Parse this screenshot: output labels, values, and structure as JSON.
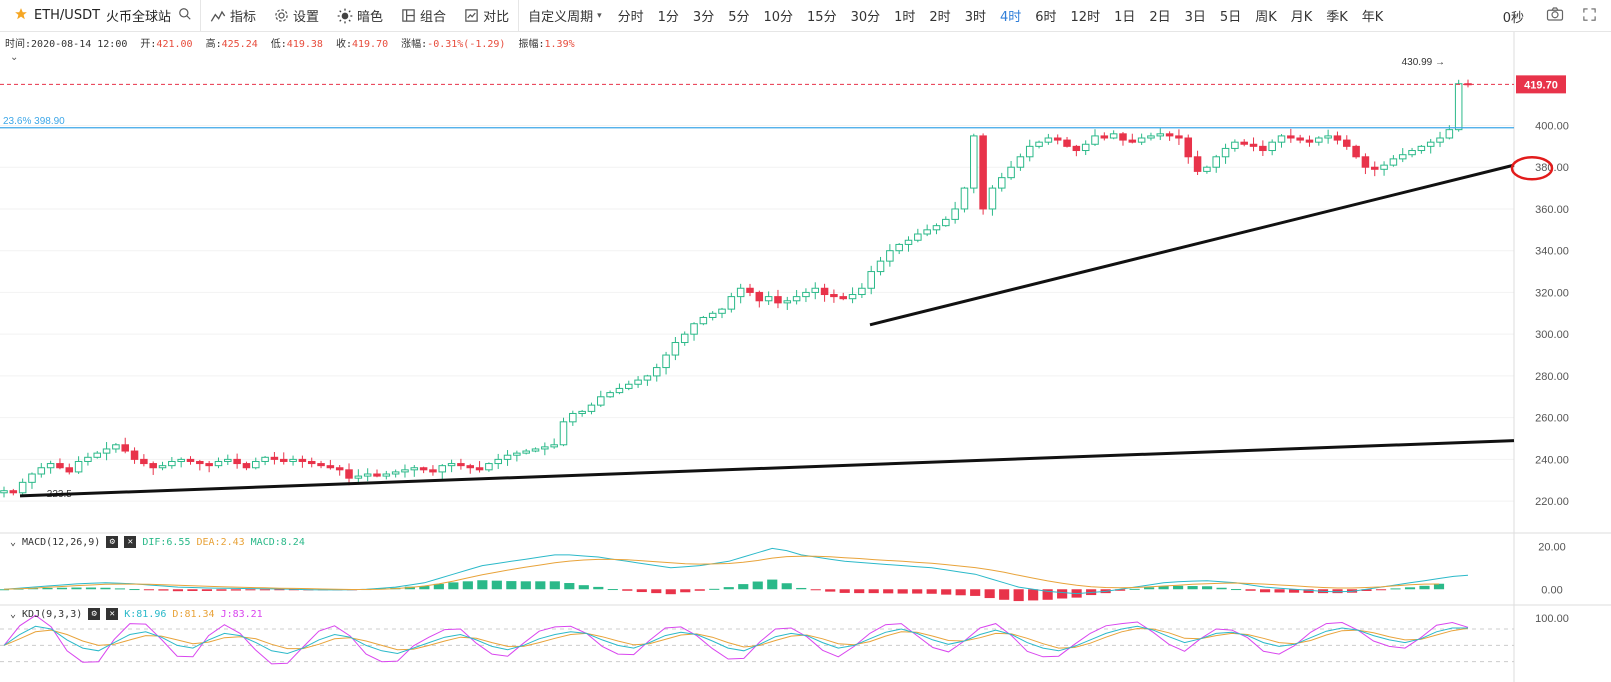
{
  "toolbar": {
    "symbol": "ETH/USDT",
    "exchange": "火币全球站",
    "indicators_label": "指标",
    "settings_label": "设置",
    "theme_label": "暗色",
    "combine_label": "组合",
    "compare_label": "对比",
    "custom_period_label": "自定义周期",
    "periods": [
      "分时",
      "1分",
      "3分",
      "5分",
      "10分",
      "15分",
      "30分",
      "1时",
      "2时",
      "3时",
      "4时",
      "6时",
      "12时",
      "1日",
      "2日",
      "3日",
      "5日",
      "周K",
      "月K",
      "季K",
      "年K"
    ],
    "active_period": "4时",
    "countdown": "0秒"
  },
  "info": {
    "time_label": "时间:",
    "time": "2020-08-14 12:00",
    "open_label": "开:",
    "open": "421.00",
    "high_label": "高:",
    "high": "425.24",
    "low_label": "低:",
    "low": "419.38",
    "close_label": "收:",
    "close": "419.70",
    "change_label": "涨幅:",
    "change": "-0.31%(-1.29)",
    "amp_label": "振幅:",
    "amp": "1.39%"
  },
  "macd": {
    "label": "MACD(12,26,9)",
    "dif": "DIF:6.55",
    "dea": "DEA:2.43",
    "macd": "MACD:8.24"
  },
  "kdj": {
    "label": "KDJ(9,3,3)",
    "k": "K:81.96",
    "d": "D:81.34",
    "j": "J:83.21"
  },
  "colors": {
    "up": "#2bb989",
    "down": "#e8334a",
    "accent": "#2f7ed8",
    "fib": "#3ea7e8",
    "price_tag": "#e8334a"
  },
  "chart_data": {
    "type": "candlestick",
    "ylim": [
      210,
      440
    ],
    "y_ticks": [
      "220.00",
      "240.00",
      "260.00",
      "280.00",
      "300.00",
      "320.00",
      "340.00",
      "360.00",
      "380.00",
      "400.00"
    ],
    "last_price": "419.70",
    "last_price_value": 419.7,
    "high_marker": "430.99",
    "high_marker_value": 430.99,
    "low_marker": "223.5",
    "low_marker_value": 223.5,
    "fib_label": "23.6% 398.90",
    "fib_value": 398.9,
    "close_series": [
      225,
      224,
      229,
      233,
      236,
      238,
      236,
      234,
      239,
      241,
      243,
      245,
      247,
      244,
      240,
      238,
      236,
      237,
      239,
      240,
      239,
      238,
      237,
      239,
      240,
      238,
      236,
      239,
      241,
      240,
      239,
      240,
      239,
      238,
      237,
      236,
      235,
      231,
      232,
      233,
      232,
      233,
      234,
      235,
      236,
      235,
      234,
      237,
      238,
      237,
      236,
      235,
      238,
      240,
      242,
      243,
      244,
      245,
      246,
      247,
      258,
      262,
      263,
      266,
      270,
      272,
      274,
      276,
      278,
      280,
      284,
      290,
      296,
      300,
      305,
      308,
      310,
      312,
      318,
      322,
      320,
      316,
      318,
      315,
      316,
      318,
      320,
      322,
      319,
      318,
      317,
      319,
      322,
      330,
      335,
      340,
      343,
      345,
      348,
      350,
      352,
      355,
      360,
      370,
      395,
      360,
      370,
      375,
      380,
      385,
      390,
      392,
      394,
      393,
      390,
      388,
      391,
      395,
      394,
      396,
      393,
      392,
      394,
      395,
      396,
      395,
      394,
      385,
      378,
      380,
      385,
      389,
      392,
      391,
      390,
      388,
      392,
      395,
      394,
      393,
      392,
      394,
      395,
      393,
      390,
      385,
      380,
      379,
      381,
      384,
      386,
      388,
      390,
      392,
      394,
      398,
      420,
      419.7
    ],
    "macd": {
      "dif": [
        0,
        0.5,
        1,
        1.5,
        2,
        2.5,
        2.8,
        3,
        2.8,
        2.5,
        2,
        1.5,
        1,
        0.8,
        0.6,
        0.5,
        0.4,
        0.3,
        0.2,
        0.1,
        0,
        -0.2,
        -0.3,
        -0.3,
        -0.2,
        0,
        0.5,
        1,
        2,
        3,
        5,
        7,
        9,
        11,
        12,
        13,
        14,
        15,
        16,
        16,
        15.5,
        15,
        14,
        13,
        12,
        11,
        10,
        10.5,
        11,
        12,
        13,
        15,
        17,
        19,
        18,
        16,
        15,
        14,
        13,
        12.5,
        12,
        11.5,
        11,
        10.5,
        10,
        9,
        8,
        7,
        5,
        3,
        1,
        0,
        -1,
        -1.5,
        -2,
        -1.5,
        -1,
        0,
        1,
        2,
        3,
        3.5,
        3.8,
        4,
        3.5,
        3,
        2,
        1,
        0.5,
        0,
        -0.5,
        -1,
        -1.2,
        -1,
        0,
        1,
        2,
        3,
        4,
        5,
        6,
        6.55
      ],
      "dea": [
        0,
        0.2,
        0.5,
        0.9,
        1.3,
        1.7,
        2,
        2.3,
        2.4,
        2.4,
        2.3,
        2.1,
        1.9,
        1.6,
        1.4,
        1.2,
        1,
        0.8,
        0.7,
        0.5,
        0.4,
        0.3,
        0.1,
        0,
        -0.1,
        -0.1,
        0,
        0.3,
        0.8,
        1.5,
        2.5,
        3.8,
        5.3,
        6.8,
        8,
        9.2,
        10.3,
        11.3,
        12.3,
        13.1,
        13.6,
        13.9,
        13.9,
        13.7,
        13.3,
        12.8,
        12.3,
        11.9,
        11.7,
        11.8,
        12,
        12.6,
        13.4,
        14.5,
        15.2,
        15.4,
        15.4,
        15.1,
        14.7,
        14.3,
        13.8,
        13.4,
        13,
        12.5,
        12.1,
        11.5,
        10.8,
        10.1,
        9.1,
        7.9,
        6.5,
        5.2,
        3.9,
        2.8,
        1.9,
        1.2,
        0.8,
        0.7,
        0.8,
        1.1,
        1.5,
        1.9,
        2.3,
        2.6,
        2.8,
        2.9,
        2.7,
        2.4,
        2,
        1.6,
        1.2,
        0.8,
        0.6,
        0.6,
        0.8,
        1.1,
        1.6,
        2.1,
        2.4,
        2.43
      ]
    },
    "kdj": {
      "k": [
        50,
        70,
        85,
        80,
        60,
        45,
        40,
        55,
        70,
        75,
        65,
        50,
        45,
        60,
        72,
        68,
        55,
        40,
        35,
        45,
        60,
        70,
        65,
        50,
        40,
        35,
        45,
        55,
        65,
        70,
        60,
        48,
        42,
        50,
        62,
        70,
        75,
        72,
        60,
        50,
        45,
        55,
        68,
        74,
        70,
        58,
        45,
        40,
        52,
        66,
        72,
        68,
        55,
        45,
        50,
        62,
        74,
        80,
        72,
        60,
        52,
        58,
        70,
        78,
        70,
        55,
        45,
        40,
        48,
        60,
        72,
        80,
        85,
        78,
        66,
        55,
        62,
        72,
        74,
        68,
        55,
        48,
        52,
        64,
        76,
        82,
        78,
        68,
        60,
        55,
        62,
        75,
        82,
        81.96
      ],
      "d": [
        50,
        62,
        75,
        78,
        70,
        58,
        50,
        52,
        60,
        68,
        67,
        60,
        53,
        56,
        64,
        66,
        62,
        52,
        44,
        44,
        52,
        62,
        64,
        58,
        50,
        42,
        43,
        50,
        58,
        65,
        63,
        55,
        48,
        48,
        55,
        63,
        70,
        72,
        66,
        58,
        51,
        53,
        61,
        69,
        71,
        65,
        55,
        47,
        50,
        59,
        67,
        69,
        62,
        53,
        51,
        57,
        67,
        75,
        74,
        67,
        59,
        58,
        64,
        72,
        71,
        63,
        53,
        45,
        46,
        54,
        65,
        75,
        81,
        80,
        73,
        63,
        62,
        68,
        72,
        70,
        63,
        55,
        53,
        59,
        69,
        77,
        78,
        73,
        66,
        60,
        61,
        69,
        77,
        81.34
      ],
      "j": [
        50,
        86,
        105,
        84,
        40,
        19,
        20,
        61,
        90,
        89,
        61,
        30,
        29,
        68,
        88,
        72,
        41,
        16,
        17,
        47,
        76,
        86,
        67,
        34,
        20,
        21,
        49,
        65,
        79,
        80,
        54,
        34,
        30,
        54,
        76,
        84,
        85,
        72,
        48,
        34,
        33,
        59,
        82,
        84,
        68,
        44,
        25,
        26,
        56,
        80,
        82,
        66,
        41,
        29,
        48,
        72,
        88,
        90,
        68,
        46,
        38,
        58,
        82,
        90,
        68,
        39,
        29,
        30,
        52,
        72,
        86,
        90,
        93,
        74,
        52,
        39,
        62,
        80,
        78,
        64,
        39,
        34,
        50,
        74,
        90,
        92,
        78,
        58,
        48,
        45,
        64,
        87,
        92,
        83.21
      ],
      "ref_ticks": [
        "100.00"
      ]
    },
    "macd_ticks": [
      "20.00",
      "0.00"
    ]
  }
}
